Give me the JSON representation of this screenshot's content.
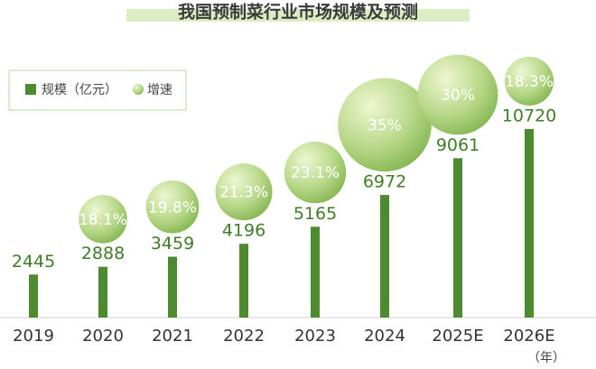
{
  "chart_data": {
    "type": "bar_bubble",
    "title": "我国预制菜行业市场规模及预测",
    "categories": [
      "2019",
      "2020",
      "2021",
      "2022",
      "2023",
      "2024",
      "2025E",
      "2026E"
    ],
    "x_unit": "（年）",
    "series": [
      {
        "name": "规模（亿元）",
        "color": "#4e8a2f",
        "values": [
          2445,
          2888,
          3459,
          4196,
          5165,
          6972,
          9061,
          10720
        ]
      },
      {
        "name": "增速",
        "color": "#9cc768",
        "values": [
          null,
          18.1,
          19.8,
          21.3,
          23.1,
          35,
          30,
          18.3
        ],
        "value_labels": [
          null,
          "18.1%",
          "19.8%",
          "21.3%",
          "23.1%",
          "35%",
          "30%",
          "18.3%"
        ]
      }
    ]
  }
}
